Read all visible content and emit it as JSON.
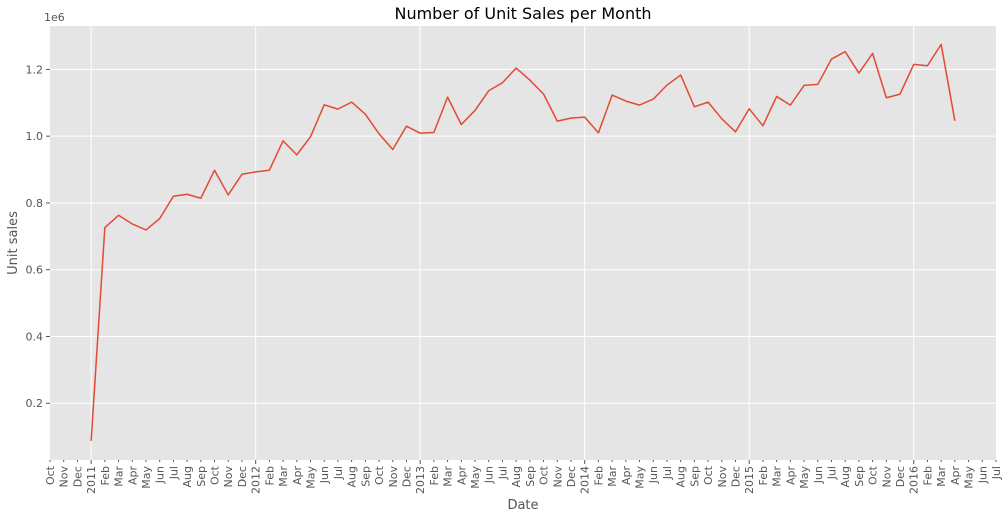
{
  "chart_data": {
    "type": "line",
    "title": "Number of Unit Sales per Month",
    "xlabel": "Date",
    "ylabel": "Unit sales",
    "y_offset_text": "1e6",
    "grid": true,
    "legend": "none",
    "colors": {
      "line": "#e24a33",
      "plot_bg": "#e5e5e5",
      "grid": "#ffffff",
      "text": "#555555"
    },
    "ylim": [
      0.03,
      1.33
    ],
    "y_ticks": [
      0.2,
      0.4,
      0.6,
      0.8,
      1.0,
      1.2
    ],
    "y_tick_labels": [
      "0.2",
      "0.4",
      "0.6",
      "0.8",
      "1.0",
      "1.2"
    ],
    "x_ticks": [
      "2010-10",
      "2010-11",
      "2010-12",
      "2011-01",
      "2011-02",
      "2011-03",
      "2011-04",
      "2011-05",
      "2011-06",
      "2011-07",
      "2011-08",
      "2011-09",
      "2011-10",
      "2011-11",
      "2011-12",
      "2012-01",
      "2012-02",
      "2012-03",
      "2012-04",
      "2012-05",
      "2012-06",
      "2012-07",
      "2012-08",
      "2012-09",
      "2012-10",
      "2012-11",
      "2012-12",
      "2013-01",
      "2013-02",
      "2013-03",
      "2013-04",
      "2013-05",
      "2013-06",
      "2013-07",
      "2013-08",
      "2013-09",
      "2013-10",
      "2013-11",
      "2013-12",
      "2014-01",
      "2014-02",
      "2014-03",
      "2014-04",
      "2014-05",
      "2014-06",
      "2014-07",
      "2014-08",
      "2014-09",
      "2014-10",
      "2014-11",
      "2014-12",
      "2015-01",
      "2015-02",
      "2015-03",
      "2015-04",
      "2015-05",
      "2015-06",
      "2015-07",
      "2015-08",
      "2015-09",
      "2015-10",
      "2015-11",
      "2015-12",
      "2016-01",
      "2016-02",
      "2016-03",
      "2016-04",
      "2016-05",
      "2016-06",
      "2016-07"
    ],
    "x_tick_labels": [
      "Oct",
      "Nov",
      "Dec",
      "2011",
      "Feb",
      "Mar",
      "Apr",
      "May",
      "Jun",
      "Jul",
      "Aug",
      "Sep",
      "Oct",
      "Nov",
      "Dec",
      "2012",
      "Feb",
      "Mar",
      "Apr",
      "May",
      "Jun",
      "Jul",
      "Aug",
      "Sep",
      "Oct",
      "Nov",
      "Dec",
      "2013",
      "Feb",
      "Mar",
      "Apr",
      "May",
      "Jun",
      "Jul",
      "Aug",
      "Sep",
      "Oct",
      "Nov",
      "Dec",
      "2014",
      "Feb",
      "Mar",
      "Apr",
      "May",
      "Jun",
      "Jul",
      "Aug",
      "Sep",
      "Oct",
      "Nov",
      "Dec",
      "2015",
      "Feb",
      "Mar",
      "Apr",
      "May",
      "Jun",
      "Jul",
      "Aug",
      "Sep",
      "Oct",
      "Nov",
      "Dec",
      "2016",
      "Feb",
      "Mar",
      "Apr",
      "May",
      "Jun",
      "Jul"
    ],
    "x_major_ticks": [
      "2011-01",
      "2012-01",
      "2013-01",
      "2014-01",
      "2015-01",
      "2016-01"
    ],
    "x_range": [
      "2010-10",
      "2016-07"
    ],
    "series": [
      {
        "x": [
          "2011-01",
          "2011-02",
          "2011-03",
          "2011-04",
          "2011-05",
          "2011-06",
          "2011-07",
          "2011-08",
          "2011-09",
          "2011-10",
          "2011-11",
          "2011-12",
          "2012-01",
          "2012-02",
          "2012-03",
          "2012-04",
          "2012-05",
          "2012-06",
          "2012-07",
          "2012-08",
          "2012-09",
          "2012-10",
          "2012-11",
          "2012-12",
          "2013-01",
          "2013-02",
          "2013-03",
          "2013-04",
          "2013-05",
          "2013-06",
          "2013-07",
          "2013-08",
          "2013-09",
          "2013-10",
          "2013-11",
          "2013-12",
          "2014-01",
          "2014-02",
          "2014-03",
          "2014-04",
          "2014-05",
          "2014-06",
          "2014-07",
          "2014-08",
          "2014-09",
          "2014-10",
          "2014-11",
          "2014-12",
          "2015-01",
          "2015-02",
          "2015-03",
          "2015-04",
          "2015-05",
          "2015-06",
          "2015-07",
          "2015-08",
          "2015-09",
          "2015-10",
          "2015-11",
          "2015-12",
          "2016-01",
          "2016-02",
          "2016-03",
          "2016-04"
        ],
        "y": [
          0.087,
          0.726,
          0.763,
          0.737,
          0.719,
          0.753,
          0.82,
          0.826,
          0.814,
          0.898,
          0.824,
          0.886,
          0.893,
          0.898,
          0.986,
          0.944,
          0.998,
          1.094,
          1.081,
          1.102,
          1.066,
          1.007,
          0.96,
          1.03,
          1.009,
          1.011,
          1.117,
          1.035,
          1.077,
          1.136,
          1.16,
          1.204,
          1.168,
          1.126,
          1.045,
          1.054,
          1.057,
          1.01,
          1.123,
          1.105,
          1.093,
          1.111,
          1.153,
          1.183,
          1.088,
          1.102,
          1.052,
          1.013,
          1.082,
          1.031,
          1.119,
          1.093,
          1.152,
          1.155,
          1.231,
          1.253,
          1.189,
          1.248,
          1.115,
          1.126,
          1.215,
          1.211,
          1.275,
          1.046
        ]
      }
    ]
  }
}
